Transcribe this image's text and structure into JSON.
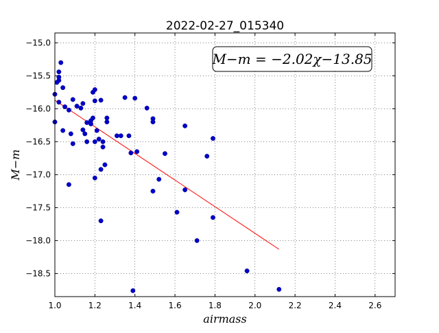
{
  "chart_data": {
    "type": "scatter",
    "title": "2022-02-27_015340",
    "xlabel": "airmass",
    "ylabel": "M−m",
    "xlim": [
      1.0,
      2.7
    ],
    "ylim": [
      -18.85,
      -14.85
    ],
    "x_ticks": [
      1.0,
      1.2,
      1.4,
      1.6,
      1.8,
      2.0,
      2.2,
      2.4,
      2.6
    ],
    "x_tick_labels": [
      "1.0",
      "1.2",
      "1.4",
      "1.6",
      "1.8",
      "2.0",
      "2.2",
      "2.4",
      "2.6"
    ],
    "y_ticks": [
      -15.0,
      -15.5,
      -16.0,
      -16.5,
      -17.0,
      -17.5,
      -18.0,
      -18.5
    ],
    "y_tick_labels": [
      "−15.0",
      "−15.5",
      "−16.0",
      "−16.5",
      "−17.0",
      "−17.5",
      "−18.0",
      "−18.5"
    ],
    "grid": true,
    "annotation": {
      "text": "M−m = −2.02χ−13.85",
      "position": "top-right"
    },
    "fit": {
      "slope": -2.02,
      "intercept": -13.85,
      "x_range": [
        1.0,
        2.12
      ],
      "color": "#ff0000"
    },
    "points_color": "#0000cc",
    "points": [
      {
        "x": 1.0,
        "y": -15.78
      },
      {
        "x": 1.0,
        "y": -16.2
      },
      {
        "x": 1.01,
        "y": -15.6
      },
      {
        "x": 1.02,
        "y": -15.44
      },
      {
        "x": 1.02,
        "y": -15.52
      },
      {
        "x": 1.02,
        "y": -15.57
      },
      {
        "x": 1.02,
        "y": -15.9
      },
      {
        "x": 1.03,
        "y": -15.3
      },
      {
        "x": 1.04,
        "y": -15.68
      },
      {
        "x": 1.04,
        "y": -16.33
      },
      {
        "x": 1.05,
        "y": -15.97
      },
      {
        "x": 1.07,
        "y": -16.02
      },
      {
        "x": 1.07,
        "y": -17.15
      },
      {
        "x": 1.08,
        "y": -16.38
      },
      {
        "x": 1.09,
        "y": -15.86
      },
      {
        "x": 1.09,
        "y": -16.53
      },
      {
        "x": 1.11,
        "y": -15.96
      },
      {
        "x": 1.13,
        "y": -15.99
      },
      {
        "x": 1.14,
        "y": -15.92
      },
      {
        "x": 1.14,
        "y": -16.32
      },
      {
        "x": 1.15,
        "y": -16.38
      },
      {
        "x": 1.16,
        "y": -16.21
      },
      {
        "x": 1.16,
        "y": -16.5
      },
      {
        "x": 1.18,
        "y": -16.18
      },
      {
        "x": 1.18,
        "y": -16.23
      },
      {
        "x": 1.19,
        "y": -15.75
      },
      {
        "x": 1.19,
        "y": -16.14
      },
      {
        "x": 1.2,
        "y": -15.71
      },
      {
        "x": 1.2,
        "y": -15.88
      },
      {
        "x": 1.2,
        "y": -16.5
      },
      {
        "x": 1.2,
        "y": -17.05
      },
      {
        "x": 1.21,
        "y": -16.33
      },
      {
        "x": 1.22,
        "y": -16.46
      },
      {
        "x": 1.23,
        "y": -16.92
      },
      {
        "x": 1.23,
        "y": -15.87
      },
      {
        "x": 1.23,
        "y": -17.7
      },
      {
        "x": 1.24,
        "y": -16.5
      },
      {
        "x": 1.24,
        "y": -16.58
      },
      {
        "x": 1.25,
        "y": -16.85
      },
      {
        "x": 1.26,
        "y": -16.14
      },
      {
        "x": 1.26,
        "y": -16.2
      },
      {
        "x": 1.31,
        "y": -16.41
      },
      {
        "x": 1.33,
        "y": -16.41
      },
      {
        "x": 1.35,
        "y": -15.83
      },
      {
        "x": 1.37,
        "y": -16.41
      },
      {
        "x": 1.38,
        "y": -16.67
      },
      {
        "x": 1.39,
        "y": -18.76
      },
      {
        "x": 1.4,
        "y": -15.84
      },
      {
        "x": 1.41,
        "y": -16.65
      },
      {
        "x": 1.46,
        "y": -15.99
      },
      {
        "x": 1.49,
        "y": -16.15
      },
      {
        "x": 1.49,
        "y": -16.2
      },
      {
        "x": 1.49,
        "y": -17.25
      },
      {
        "x": 1.52,
        "y": -17.07
      },
      {
        "x": 1.55,
        "y": -16.68
      },
      {
        "x": 1.61,
        "y": -17.57
      },
      {
        "x": 1.65,
        "y": -16.26
      },
      {
        "x": 1.65,
        "y": -17.23
      },
      {
        "x": 1.71,
        "y": -18.0
      },
      {
        "x": 1.76,
        "y": -16.72
      },
      {
        "x": 1.79,
        "y": -16.45
      },
      {
        "x": 1.79,
        "y": -17.65
      },
      {
        "x": 1.96,
        "y": -18.46
      },
      {
        "x": 2.12,
        "y": -18.74
      }
    ]
  }
}
